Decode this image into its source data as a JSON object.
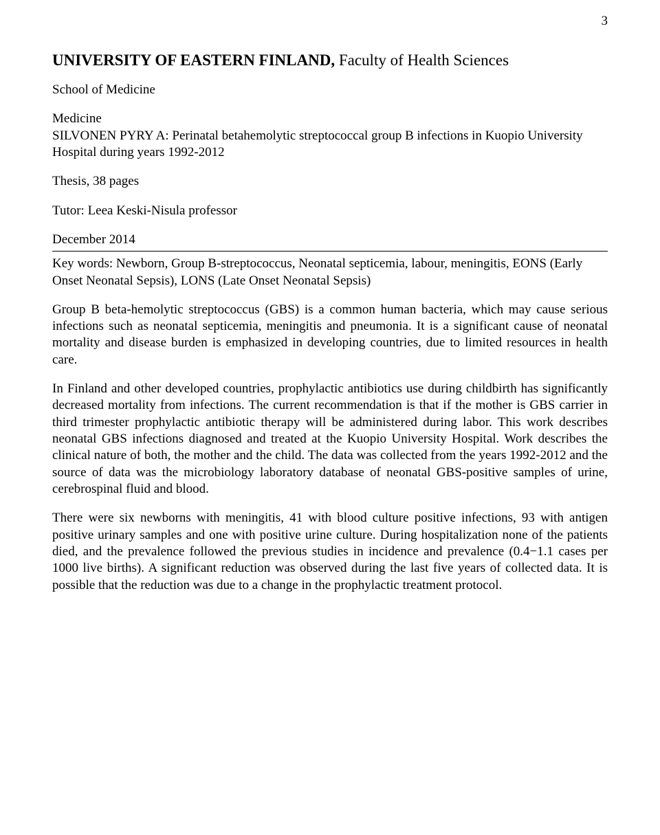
{
  "page_number": "3",
  "heading": {
    "bold": "UNIVERSITY OF EASTERN FINLAND,",
    "normal": " Faculty of Health Sciences"
  },
  "school": "School of Medicine",
  "department": "Medicine",
  "author_title": "SILVONEN PYRY A: Perinatal betahemolytic streptococcal group B infections in Kuopio University Hospital during years 1992-2012",
  "thesis_info": "Thesis, 38 pages",
  "tutor": "Tutor: Leea Keski-Nisula professor",
  "date": "December 2014",
  "keywords": "Key words: Newborn, Group B-streptococcus, Neonatal septicemia, labour, meningitis, EONS (Early Onset Neonatal Sepsis), LONS (Late Onset Neonatal Sepsis)",
  "para1": "Group B beta-hemolytic streptococcus (GBS) is a common human bacteria, which may cause serious infections such as neonatal septicemia, meningitis and pneumonia. It is a significant cause of neonatal mortality and disease burden is emphasized in developing countries, due to limited resources in health care.",
  "para2": "In Finland and other developed countries, prophylactic antibiotics use during childbirth has significantly decreased mortality from infections. The current recommendation is that if the mother is GBS carrier in third trimester prophylactic antibiotic therapy will be administered during labor. This work describes neonatal GBS infections diagnosed and treated at the Kuopio University Hospital. Work describes the clinical nature of both, the mother and the child. The data was collected from the years 1992-2012 and the source of data was the microbiology laboratory database of neonatal GBS-positive samples of urine, cerebrospinal fluid and blood.",
  "para3": "There were six newborns with meningitis, 41 with blood culture positive infections, 93 with antigen positive urinary samples and one with positive urine culture. During hospitalization none of the patients died, and the prevalence followed the previous studies in incidence and prevalence (0.4−1.1 cases per 1000 live births). A significant reduction was observed during the last five years of collected data. It is possible that the reduction was due to a change in the prophylactic treatment protocol.",
  "colors": {
    "text": "#000000",
    "background": "#ffffff"
  },
  "typography": {
    "font_family": "Times New Roman",
    "body_fontsize": 19,
    "heading_fontsize": 23
  }
}
